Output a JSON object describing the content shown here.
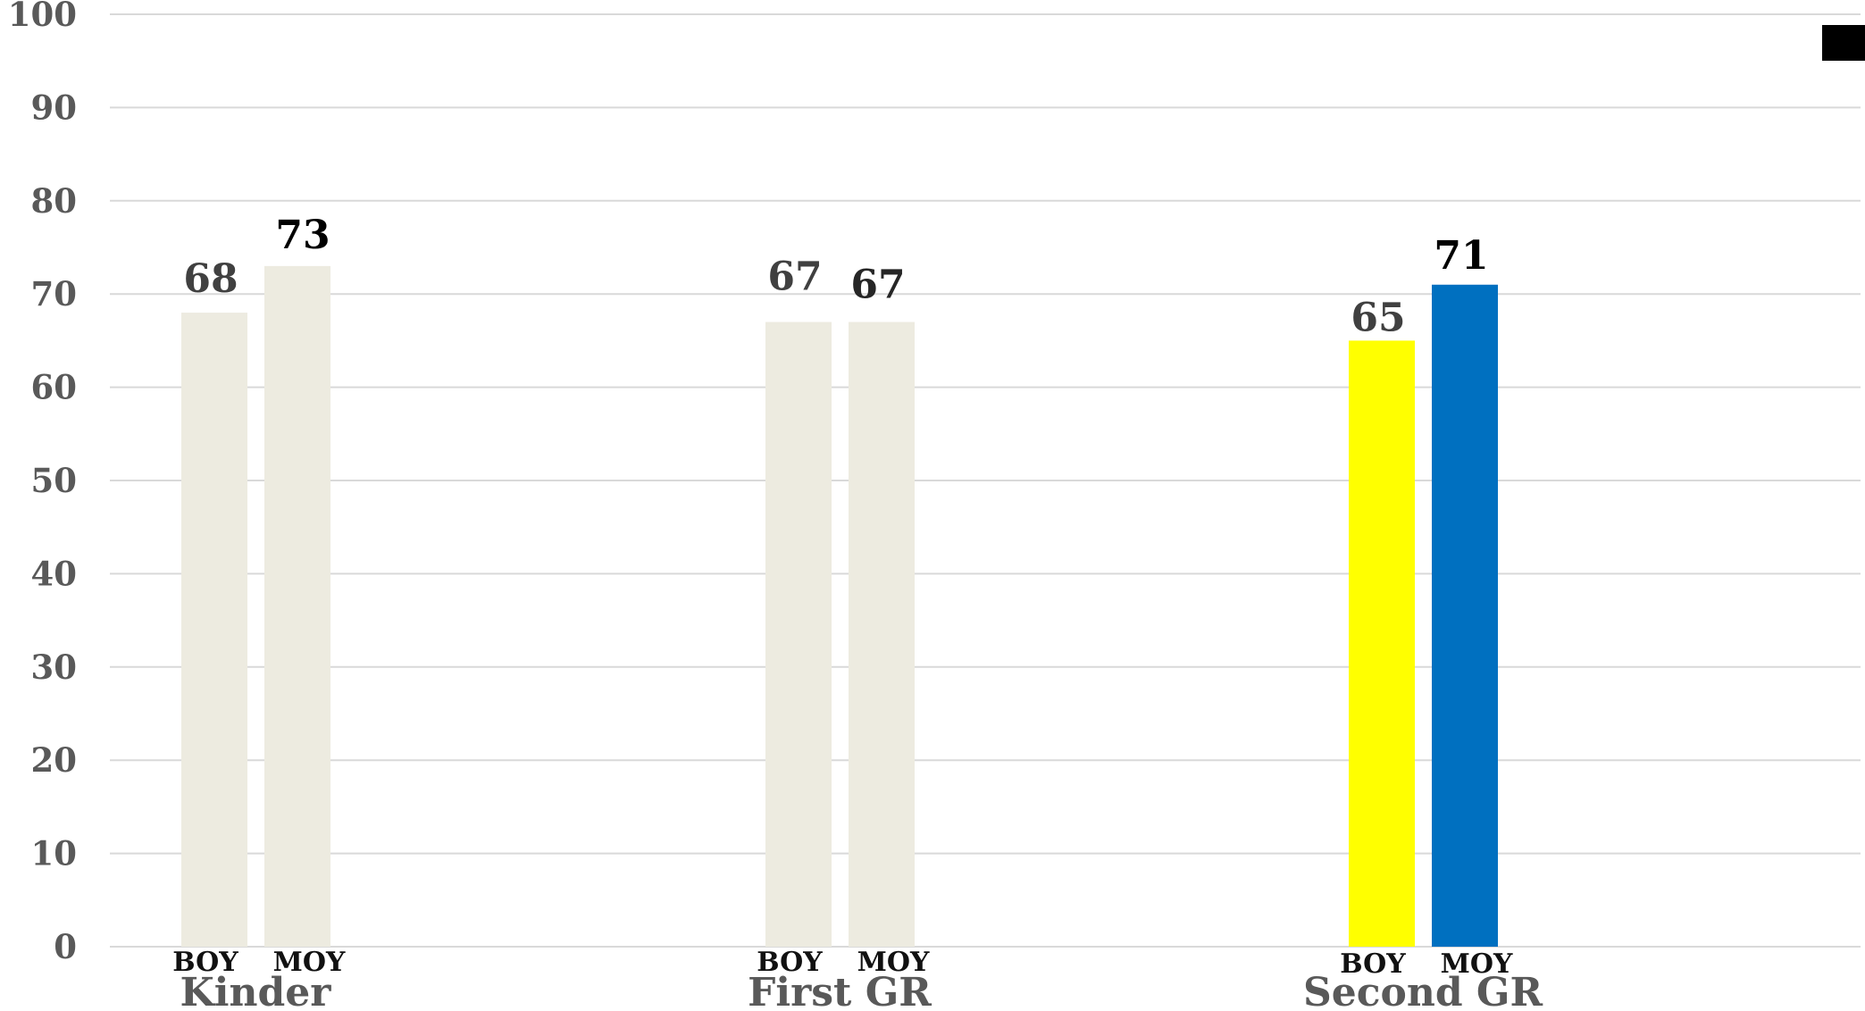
{
  "chart_data": {
    "type": "bar",
    "categories": [
      "Kinder",
      "First GR",
      "Second GR"
    ],
    "sub_categories": [
      "BOY",
      "MOY"
    ],
    "ylim": [
      0,
      100
    ],
    "y_ticks": [
      0,
      10,
      20,
      30,
      40,
      50,
      60,
      70,
      80,
      90,
      100
    ],
    "grid": true,
    "legend_marker_color": "#000000",
    "bars": [
      {
        "category": "Kinder",
        "label": "BOY",
        "value": 68,
        "color": "#EDEBE0",
        "label_color": "#404040"
      },
      {
        "category": "Kinder",
        "label": "MOY",
        "value": 73,
        "color": "#EDEBE0",
        "label_color": "#000000"
      },
      {
        "category": "First GR",
        "label": "BOY",
        "value": 67,
        "color": "#EDEBE0",
        "label_color": "#404040"
      },
      {
        "category": "First GR",
        "label": "MOY",
        "value": 67,
        "color": "#EDEBE0",
        "label_color": "#262626"
      },
      {
        "category": "Second GR",
        "label": "BOY",
        "value": 65,
        "color": "#FFFF00",
        "label_color": "#404040"
      },
      {
        "category": "Second GR",
        "label": "MOY",
        "value": 71,
        "color": "#0070C0",
        "label_color": "#000000"
      }
    ]
  }
}
